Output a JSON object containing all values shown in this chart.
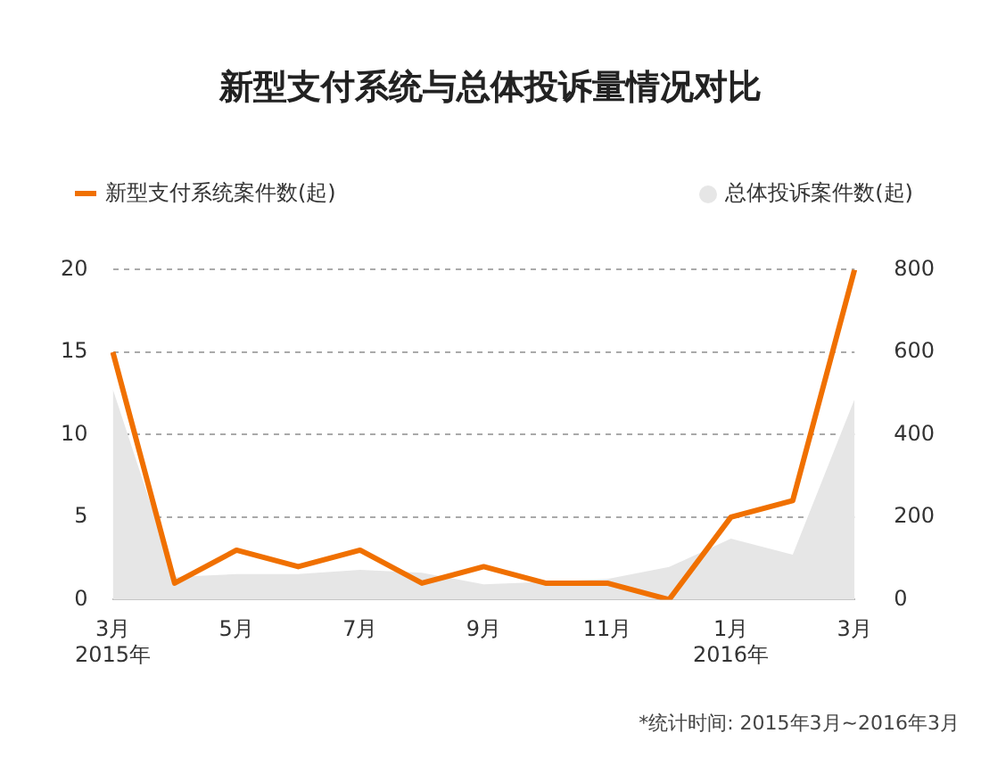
{
  "chart_data": {
    "type": "line",
    "title": "新型支付系统与总体投诉量情况对比",
    "categories": [
      "3月\n2015年",
      null,
      "5月",
      null,
      "7月",
      null,
      "9月",
      null,
      "11月",
      null,
      "1月\n2016年",
      null,
      "3月"
    ],
    "series": [
      {
        "name": "新型支付系统案件数(起)",
        "color": "#f07000",
        "type": "line",
        "values": [
          15,
          1,
          3,
          2,
          3,
          1,
          2,
          1,
          1,
          0,
          5,
          6,
          20
        ]
      },
      {
        "name": "总体投诉案件数(起)",
        "color": "#e6e6e6",
        "type": "area",
        "axis": "y2",
        "values": [
          510,
          55,
          62,
          62,
          72,
          65,
          37,
          43,
          50,
          79,
          148,
          109,
          486
        ]
      }
    ],
    "ylim": [
      0,
      20
    ],
    "yticks": [
      0,
      5,
      10,
      15,
      20
    ],
    "y2lim": [
      0,
      800
    ],
    "y2ticks": [
      0,
      200,
      400,
      600,
      800
    ],
    "grid": "y",
    "legend": "top",
    "marker": "none",
    "line_style": "solid",
    "annotations": [
      "*统计时间: 2015年3月~2016年3月"
    ]
  }
}
